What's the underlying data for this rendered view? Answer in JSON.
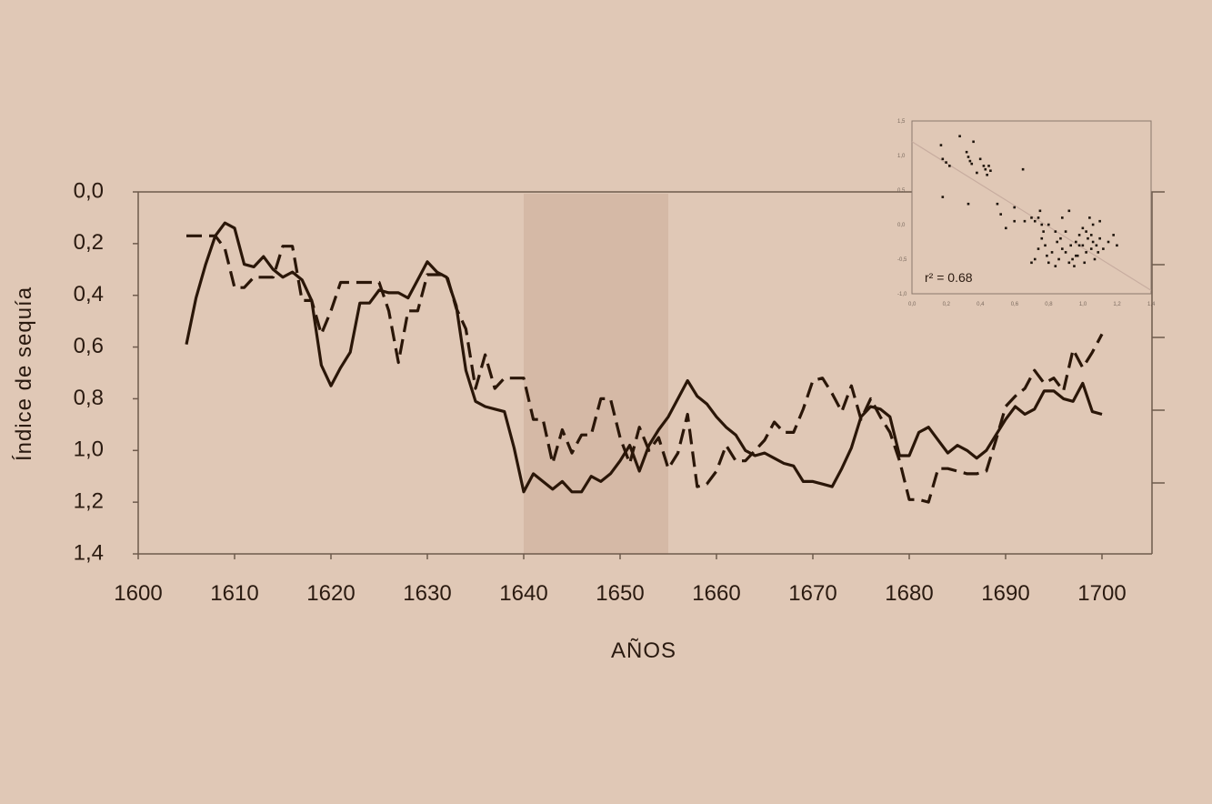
{
  "chart_data": [
    {
      "type": "line",
      "xlabel": "AÑOS",
      "ylabel": "Índice de sequía",
      "x_ticks": [
        "1600",
        "1610",
        "1620",
        "1630",
        "1640",
        "1650",
        "1660",
        "1670",
        "1680",
        "1690",
        "1700"
      ],
      "y_ticks": [
        "0,0",
        "0,2",
        "0,4",
        "0,6",
        "0,8",
        "1,0",
        "1,2",
        "1,4"
      ],
      "xlim": [
        1600,
        1705
      ],
      "ylim": [
        0.0,
        1.4
      ],
      "y_inverted": true,
      "grid": false,
      "legend": "none",
      "highlight_band": {
        "x": [
          1640,
          1655
        ],
        "color": "#d5b9a6"
      },
      "series": [
        {
          "style": "solid",
          "color": "#2a1608",
          "x": [
            1605,
            1606,
            1607,
            1608,
            1609,
            1610,
            1611,
            1612,
            1613,
            1614,
            1615,
            1616,
            1617,
            1618,
            1619,
            1620,
            1621,
            1622,
            1623,
            1624,
            1625,
            1626,
            1627,
            1628,
            1629,
            1630,
            1631,
            1632,
            1633,
            1634,
            1635,
            1636,
            1637,
            1638,
            1639,
            1640,
            1641,
            1642,
            1643,
            1644,
            1645,
            1646,
            1647,
            1648,
            1649,
            1650,
            1651,
            1652,
            1653,
            1654,
            1655,
            1656,
            1657,
            1658,
            1659,
            1660,
            1661,
            1662,
            1663,
            1664,
            1665,
            1666,
            1667,
            1668,
            1669,
            1670,
            1671,
            1672,
            1673,
            1674,
            1675,
            1676,
            1677,
            1678,
            1679,
            1680,
            1681,
            1682,
            1683,
            1684,
            1685,
            1686,
            1687,
            1688,
            1689,
            1690,
            1691,
            1692,
            1693,
            1694,
            1695,
            1696,
            1697,
            1698,
            1699,
            1700
          ],
          "y": [
            0.59,
            0.41,
            0.28,
            0.17,
            0.12,
            0.14,
            0.28,
            0.29,
            0.25,
            0.3,
            0.33,
            0.31,
            0.34,
            0.42,
            0.67,
            0.75,
            0.68,
            0.62,
            0.43,
            0.43,
            0.38,
            0.39,
            0.39,
            0.41,
            0.34,
            0.27,
            0.31,
            0.33,
            0.44,
            0.69,
            0.81,
            0.83,
            0.84,
            0.85,
            0.99,
            1.16,
            1.09,
            1.12,
            1.15,
            1.12,
            1.16,
            1.16,
            1.1,
            1.12,
            1.09,
            1.04,
            0.98,
            1.08,
            0.98,
            0.92,
            0.87,
            0.8,
            0.73,
            0.79,
            0.82,
            0.87,
            0.91,
            0.94,
            1.0,
            1.02,
            1.01,
            1.03,
            1.05,
            1.06,
            1.12,
            1.12,
            1.13,
            1.14,
            1.07,
            0.99,
            0.87,
            0.83,
            0.84,
            0.87,
            1.02,
            1.02,
            0.93,
            0.91,
            0.96,
            1.01,
            0.98,
            1.0,
            1.03,
            1.0,
            0.94,
            0.88,
            0.83,
            0.86,
            0.84,
            0.77,
            0.77,
            0.8,
            0.81,
            0.74,
            0.85,
            0.86
          ]
        },
        {
          "style": "dashed",
          "color": "#2a1608",
          "x": [
            1605,
            1606,
            1607,
            1608,
            1609,
            1610,
            1611,
            1612,
            1613,
            1614,
            1615,
            1616,
            1617,
            1618,
            1619,
            1620,
            1621,
            1622,
            1623,
            1624,
            1625,
            1626,
            1627,
            1628,
            1629,
            1630,
            1631,
            1632,
            1633,
            1634,
            1635,
            1636,
            1637,
            1638,
            1639,
            1640,
            1641,
            1642,
            1643,
            1644,
            1645,
            1646,
            1647,
            1648,
            1649,
            1650,
            1651,
            1652,
            1653,
            1654,
            1655,
            1656,
            1657,
            1658,
            1659,
            1660,
            1661,
            1662,
            1663,
            1664,
            1665,
            1666,
            1667,
            1668,
            1669,
            1670,
            1671,
            1672,
            1673,
            1674,
            1675,
            1676,
            1677,
            1678,
            1679,
            1680,
            1681,
            1682,
            1683,
            1684,
            1685,
            1686,
            1687,
            1688,
            1689,
            1690,
            1691,
            1692,
            1693,
            1694,
            1695,
            1696,
            1697,
            1698,
            1699,
            1700
          ],
          "y": [
            0.17,
            0.17,
            0.17,
            0.17,
            0.22,
            0.37,
            0.37,
            0.33,
            0.33,
            0.33,
            0.21,
            0.21,
            0.42,
            0.42,
            0.55,
            0.46,
            0.35,
            0.35,
            0.35,
            0.35,
            0.35,
            0.46,
            0.66,
            0.46,
            0.46,
            0.32,
            0.32,
            0.32,
            0.45,
            0.53,
            0.76,
            0.63,
            0.76,
            0.72,
            0.72,
            0.72,
            0.88,
            0.88,
            1.05,
            0.92,
            1.01,
            0.94,
            0.94,
            0.8,
            0.8,
            0.95,
            1.05,
            0.91,
            1.0,
            0.95,
            1.07,
            1.01,
            0.86,
            1.14,
            1.13,
            1.08,
            0.98,
            1.04,
            1.04,
            1.0,
            0.96,
            0.89,
            0.93,
            0.93,
            0.84,
            0.73,
            0.72,
            0.78,
            0.85,
            0.75,
            0.88,
            0.8,
            0.87,
            0.93,
            1.04,
            1.19,
            1.19,
            1.2,
            1.07,
            1.07,
            1.08,
            1.09,
            1.09,
            1.08,
            0.96,
            0.83,
            0.79,
            0.76,
            0.69,
            0.74,
            0.72,
            0.77,
            0.61,
            0.68,
            0.62,
            0.55
          ]
        }
      ]
    },
    {
      "type": "scatter",
      "annotation": "r² = 0.68",
      "x_ticks": [
        "0,0",
        "0,2",
        "0,4",
        "0,6",
        "0,8",
        "1,0",
        "1,2",
        "1,4"
      ],
      "y_ticks": [
        "1,5",
        "1,0",
        "0,5",
        "0,0",
        "-0,5",
        "-1,0"
      ],
      "xlim": [
        0.0,
        1.4
      ],
      "ylim": [
        -1.0,
        1.5
      ],
      "trendline": {
        "x": [
          0.0,
          1.4
        ],
        "y": [
          1.2,
          -0.95
        ],
        "color": "#c8ada0"
      },
      "points": {
        "x": [
          0.17,
          0.18,
          0.2,
          0.22,
          0.28,
          0.32,
          0.33,
          0.34,
          0.35,
          0.36,
          0.38,
          0.4,
          0.42,
          0.43,
          0.44,
          0.45,
          0.46,
          0.5,
          0.52,
          0.55,
          0.6,
          0.65,
          0.66,
          0.7,
          0.72,
          0.74,
          0.75,
          0.76,
          0.77,
          0.78,
          0.79,
          0.8,
          0.82,
          0.84,
          0.86,
          0.87,
          0.88,
          0.9,
          0.92,
          0.93,
          0.94,
          0.95,
          0.96,
          0.97,
          0.98,
          1.0,
          1.01,
          1.02,
          1.03,
          1.04,
          1.05,
          1.06,
          1.07,
          1.08,
          1.1,
          1.12,
          1.15,
          1.18,
          1.2,
          0.72,
          0.76,
          0.8,
          0.84,
          0.9,
          0.96,
          1.0,
          1.05,
          1.1,
          0.18,
          0.33,
          0.6,
          0.88,
          0.98,
          1.09,
          0.74,
          0.92,
          1.02,
          1.06,
          0.85,
          0.7
        ],
        "y": [
          1.15,
          0.95,
          0.9,
          0.85,
          1.28,
          1.05,
          0.98,
          0.92,
          0.88,
          1.2,
          0.75,
          0.95,
          0.85,
          0.8,
          0.72,
          0.85,
          0.78,
          0.3,
          0.15,
          -0.05,
          0.25,
          0.8,
          0.05,
          -0.55,
          -0.5,
          0.1,
          0.2,
          0.0,
          -0.1,
          -0.3,
          -0.45,
          -0.55,
          -0.4,
          -0.6,
          -0.5,
          -0.2,
          -0.35,
          -0.1,
          0.2,
          -0.3,
          -0.5,
          -0.6,
          -0.25,
          -0.45,
          -0.15,
          -0.3,
          -0.55,
          -0.4,
          -0.2,
          0.1,
          -0.35,
          -0.25,
          -0.5,
          -0.3,
          -0.2,
          -0.35,
          -0.25,
          -0.15,
          -0.3,
          0.05,
          -0.2,
          0.0,
          -0.1,
          -0.4,
          -0.45,
          -0.05,
          -0.15,
          0.05,
          0.4,
          0.3,
          0.05,
          0.1,
          -0.3,
          -0.4,
          -0.35,
          -0.55,
          -0.1,
          0.0,
          -0.25,
          0.1
        ]
      }
    }
  ]
}
